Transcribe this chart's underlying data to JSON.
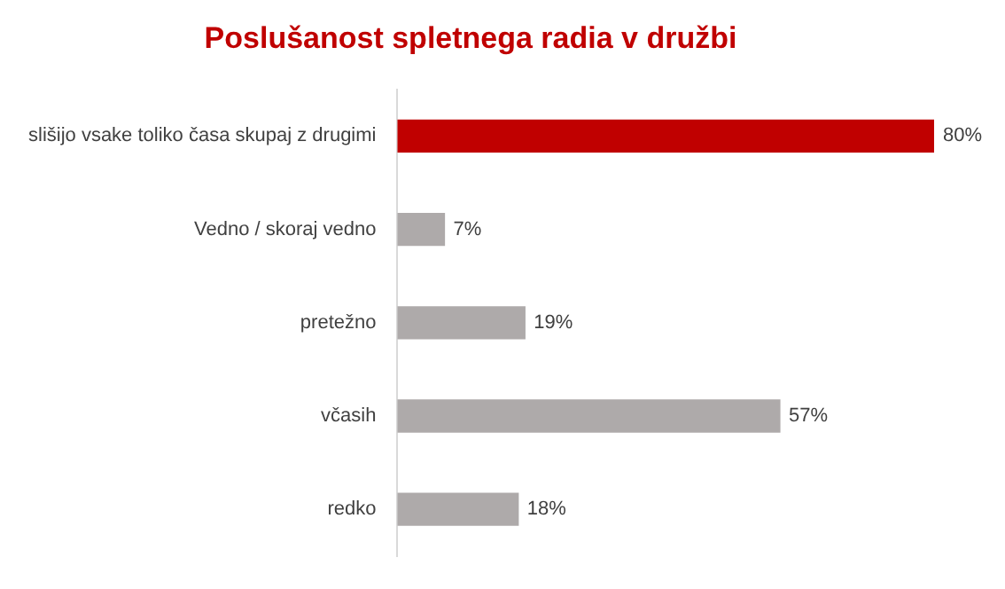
{
  "chart_data": {
    "type": "bar",
    "orientation": "horizontal",
    "title": "Poslušanost spletnega radia v družbi",
    "categories": [
      "slišijo vsake toliko časa skupaj z drugimi",
      "Vedno / skoraj vedno",
      "pretežno",
      "včasih",
      "redko"
    ],
    "values": [
      80,
      7,
      19,
      57,
      18
    ],
    "colors": [
      "#c00000",
      "#aeaaaa",
      "#aeaaaa",
      "#aeaaaa",
      "#aeaaaa"
    ],
    "value_labels": [
      "80%",
      "7%",
      "19%",
      "57%",
      "18%"
    ],
    "tick_labels": "y",
    "grid": false,
    "legend": false
  }
}
